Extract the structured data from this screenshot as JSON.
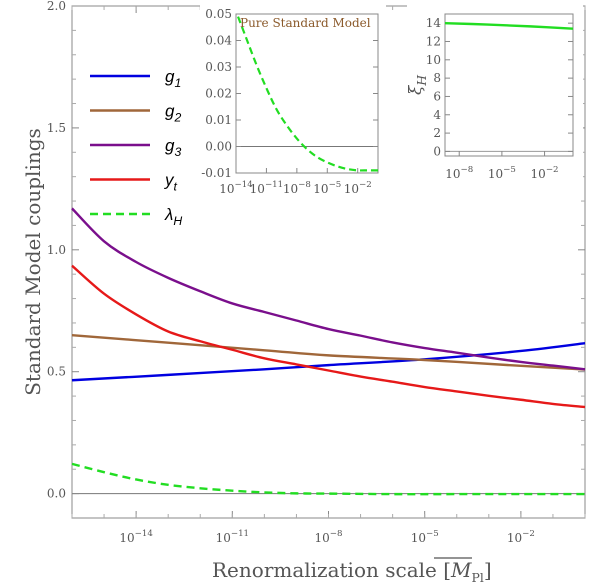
{
  "chart_data": [
    {
      "type": "line",
      "xlabel": "Renormalization scale [M̄_Pl]",
      "xlabel_main": "Renormalization scale",
      "xlabel_unit_main": "M",
      "xlabel_unit_sub": "Pl",
      "ylabel": "Standard Model couplings",
      "x_scale": "log",
      "xlim": [
        1e-16,
        1
      ],
      "ylim": [
        -0.1,
        2.0
      ],
      "x_ticks": [
        {
          "exp": -14,
          "label_base": "10",
          "label_exp": "−14"
        },
        {
          "exp": -11,
          "label_base": "10",
          "label_exp": "−11"
        },
        {
          "exp": -8,
          "label_base": "10",
          "label_exp": "−8"
        },
        {
          "exp": -5,
          "label_base": "10",
          "label_exp": "−5"
        },
        {
          "exp": -2,
          "label_base": "10",
          "label_exp": "−2"
        }
      ],
      "y_ticks": [
        "0.0",
        "0.5",
        "1.0",
        "1.5",
        "2.0"
      ],
      "y_tick_values": [
        0.0,
        0.5,
        1.0,
        1.5,
        2.0
      ],
      "legend_position": "top-left",
      "series": [
        {
          "name": "g1",
          "name_base": "g",
          "name_sub": "1",
          "color": "#0000e0",
          "dash": "solid",
          "x_exp": [
            -16,
            -13,
            -10,
            -8,
            -5,
            -2,
            0
          ],
          "y": [
            0.465,
            0.487,
            0.51,
            0.527,
            0.551,
            0.585,
            0.617
          ]
        },
        {
          "name": "g2",
          "name_base": "g",
          "name_sub": "2",
          "color": "#a0673a",
          "dash": "solid",
          "x_exp": [
            -16,
            -13,
            -10,
            -8,
            -5,
            -2,
            0
          ],
          "y": [
            0.65,
            0.619,
            0.588,
            0.567,
            0.548,
            0.524,
            0.509
          ]
        },
        {
          "name": "g3",
          "name_base": "g",
          "name_sub": "3",
          "color": "#7a0f8c",
          "dash": "solid",
          "x_exp": [
            -16,
            -15,
            -14,
            -13,
            -12,
            -11,
            -10,
            -9,
            -8,
            -7,
            -6,
            -5,
            -4,
            -3,
            -2,
            -1,
            0
          ],
          "y": [
            1.17,
            1.035,
            0.95,
            0.885,
            0.83,
            0.78,
            0.745,
            0.71,
            0.675,
            0.648,
            0.62,
            0.597,
            0.578,
            0.558,
            0.54,
            0.525,
            0.51
          ]
        },
        {
          "name": "yt",
          "name_base": "y",
          "name_sub": "t",
          "color": "#e61919",
          "dash": "solid",
          "x_exp": [
            -16,
            -15,
            -14,
            -13,
            -12,
            -11,
            -10,
            -9,
            -8,
            -7,
            -6,
            -5,
            -4,
            -3,
            -2,
            -1,
            0
          ],
          "y": [
            0.935,
            0.82,
            0.735,
            0.665,
            0.625,
            0.59,
            0.555,
            0.53,
            0.505,
            0.48,
            0.459,
            0.437,
            0.419,
            0.401,
            0.385,
            0.368,
            0.355
          ]
        },
        {
          "name": "λH",
          "name_base": "λ",
          "name_sub": "H",
          "color": "#22dd22",
          "dash": "dashed",
          "x_exp": [
            -16,
            -15,
            -14,
            -13,
            -12,
            -11,
            -10,
            -9,
            -8,
            -6,
            -4,
            -2,
            0
          ],
          "y": [
            0.122,
            0.088,
            0.058,
            0.036,
            0.022,
            0.012,
            0.005,
            0.001,
            0.0,
            -0.002,
            -0.002,
            -0.002,
            -0.002
          ]
        }
      ]
    },
    {
      "type": "line",
      "title": "Pure Standard Model",
      "x_scale": "log",
      "xlim": [
        1e-14,
        1
      ],
      "ylim": [
        -0.01,
        0.05
      ],
      "x_ticks": [
        {
          "exp": -14,
          "label_base": "10",
          "label_exp": "−14"
        },
        {
          "exp": -11,
          "label_base": "10",
          "label_exp": "−11"
        },
        {
          "exp": -8,
          "label_base": "10",
          "label_exp": "−8"
        },
        {
          "exp": -5,
          "label_base": "10",
          "label_exp": "−5"
        },
        {
          "exp": -2,
          "label_base": "10",
          "label_exp": "−2"
        }
      ],
      "y_ticks": [
        "0.05",
        "0.04",
        "0.03",
        "0.02",
        "0.01",
        "0.00",
        "-0.01"
      ],
      "y_tick_values": [
        0.05,
        0.04,
        0.03,
        0.02,
        0.01,
        0.0,
        -0.01
      ],
      "series": [
        {
          "name": "λH",
          "color": "#22dd22",
          "dash": "dashed",
          "x_exp": [
            -13.8,
            -13,
            -12,
            -11,
            -10,
            -9,
            -8,
            -7,
            -6,
            -5,
            -4,
            -3,
            -2,
            -1,
            0
          ],
          "y": [
            0.049,
            0.041,
            0.031,
            0.022,
            0.014,
            0.008,
            0.003,
            -0.001,
            -0.004,
            -0.006,
            -0.0075,
            -0.0085,
            -0.009,
            -0.009,
            -0.009
          ]
        }
      ]
    },
    {
      "type": "line",
      "ylabel": "ξH",
      "ylabel_base": "ξ",
      "ylabel_sub": "H",
      "x_scale": "log",
      "xlim": [
        1e-09,
        1
      ],
      "ylim": [
        -0.5,
        15
      ],
      "x_ticks": [
        {
          "exp": -8,
          "label_base": "10",
          "label_exp": "−8"
        },
        {
          "exp": -5,
          "label_base": "10",
          "label_exp": "−5"
        },
        {
          "exp": -2,
          "label_base": "10",
          "label_exp": "−2"
        }
      ],
      "y_ticks": [
        "14",
        "12",
        "10",
        "8",
        "6",
        "4",
        "2",
        "0"
      ],
      "y_tick_values": [
        14,
        12,
        10,
        8,
        6,
        4,
        2,
        0
      ],
      "series": [
        {
          "name": "ξH",
          "color": "#22dd22",
          "dash": "solid",
          "x_exp": [
            -9,
            -6,
            -3,
            0
          ],
          "y": [
            14.0,
            13.85,
            13.65,
            13.4
          ]
        }
      ]
    }
  ]
}
